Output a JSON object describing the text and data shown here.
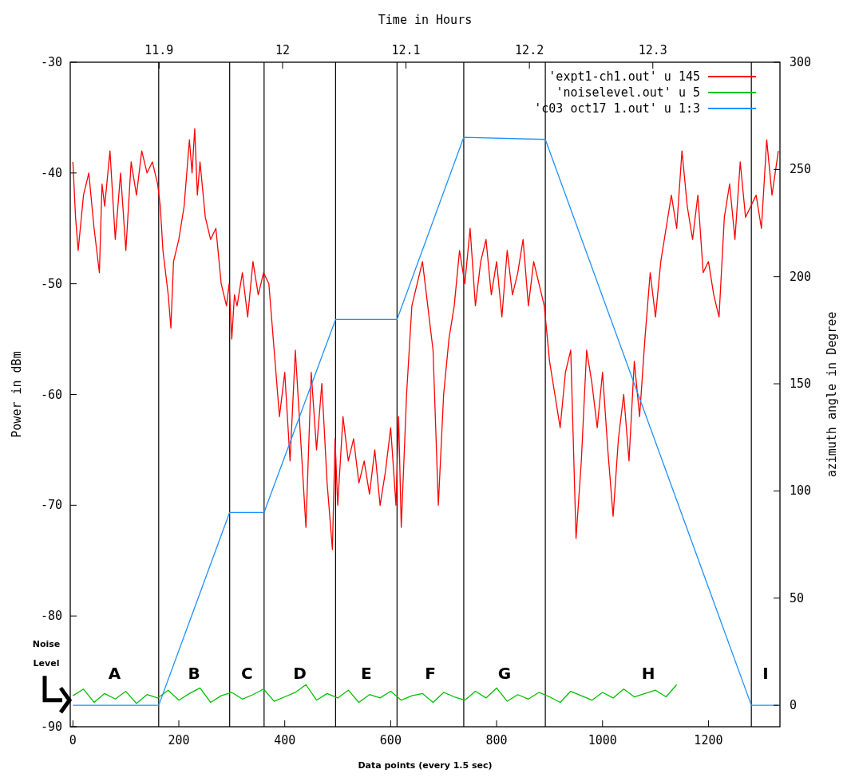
{
  "chart_data": {
    "type": "line",
    "x2label": "Time in Hours",
    "xlabel": "Data points (every 1.5 sec)",
    "ylabel": "Power in dBm",
    "y2label": "azimuth angle in Degree",
    "xlim": [
      -5,
      1335
    ],
    "xticks": [
      0,
      200,
      400,
      600,
      800,
      1000,
      1200
    ],
    "x2lim": [
      11.828,
      12.403
    ],
    "x2ticks": [
      11.9,
      12,
      12.1,
      12.2,
      12.3
    ],
    "ylim": [
      -90,
      -30
    ],
    "yticks": [
      -90,
      -80,
      -70,
      -60,
      -50,
      -40,
      -30
    ],
    "y2lim": [
      -10,
      300
    ],
    "y2ticks": [
      0,
      50,
      100,
      150,
      200,
      250,
      300
    ],
    "grid": false,
    "legend": "top right",
    "line_style": "solid",
    "marker": "none",
    "series": [
      {
        "name": "'expt1-ch1.out' u 145",
        "color": "#ff0000",
        "x": [
          0,
          5,
          10,
          20,
          30,
          40,
          50,
          55,
          60,
          70,
          80,
          90,
          100,
          110,
          120,
          130,
          140,
          150,
          160,
          165,
          170,
          180,
          185,
          190,
          200,
          210,
          215,
          220,
          225,
          230,
          235,
          240,
          250,
          260,
          270,
          280,
          290,
          295,
          300,
          305,
          310,
          320,
          330,
          340,
          350,
          360,
          370,
          380,
          390,
          400,
          410,
          420,
          430,
          440,
          450,
          460,
          470,
          480,
          490,
          495,
          500,
          510,
          520,
          530,
          540,
          550,
          560,
          570,
          580,
          590,
          600,
          610,
          615,
          620,
          630,
          640,
          650,
          660,
          670,
          680,
          690,
          700,
          710,
          720,
          730,
          740,
          750,
          760,
          770,
          780,
          790,
          800,
          810,
          820,
          830,
          840,
          850,
          860,
          870,
          880,
          890,
          900,
          910,
          920,
          930,
          940,
          950,
          960,
          970,
          980,
          990,
          1000,
          1010,
          1020,
          1030,
          1040,
          1050,
          1060,
          1070,
          1080,
          1090,
          1100,
          1110,
          1120,
          1130,
          1140,
          1150,
          1160,
          1170,
          1180,
          1190,
          1200,
          1210,
          1220,
          1230,
          1240,
          1250,
          1260,
          1270,
          1280,
          1290,
          1300,
          1310,
          1320,
          1332
        ],
        "values": [
          -39,
          -44,
          -47,
          -42,
          -40,
          -45,
          -49,
          -41,
          -43,
          -38,
          -46,
          -40,
          -47,
          -39,
          -42,
          -38,
          -40,
          -39,
          -41,
          -43,
          -47,
          -51,
          -54,
          -48,
          -46,
          -43,
          -40,
          -37,
          -40,
          -36,
          -42,
          -39,
          -44,
          -46,
          -45,
          -50,
          -52,
          -50,
          -55,
          -51,
          -52,
          -49,
          -53,
          -48,
          -51,
          -49,
          -50,
          -56,
          -62,
          -58,
          -66,
          -56,
          -64,
          -72,
          -58,
          -65,
          -59,
          -68,
          -74,
          -64,
          -70,
          -62,
          -66,
          -64,
          -68,
          -66,
          -69,
          -65,
          -70,
          -67,
          -63,
          -70,
          -62,
          -72,
          -60,
          -52,
          -50,
          -48,
          -52,
          -56,
          -70,
          -60,
          -55,
          -52,
          -47,
          -50,
          -45,
          -52,
          -48,
          -46,
          -51,
          -48,
          -53,
          -47,
          -51,
          -49,
          -46,
          -52,
          -48,
          -50,
          -52,
          -57,
          -60,
          -63,
          -58,
          -56,
          -73,
          -66,
          -56,
          -59,
          -63,
          -58,
          -65,
          -71,
          -64,
          -60,
          -66,
          -57,
          -62,
          -55,
          -49,
          -53,
          -48,
          -45,
          -42,
          -45,
          -38,
          -43,
          -46,
          -42,
          -49,
          -48,
          -51,
          -53,
          -44,
          -41,
          -46,
          -39,
          -44,
          -43,
          -42,
          -45,
          -37,
          -42,
          -38
        ]
      },
      {
        "name": "'noiselevel.out' u 5",
        "color": "#00c000",
        "x": [
          0,
          20,
          40,
          60,
          80,
          100,
          120,
          140,
          160,
          180,
          200,
          220,
          240,
          260,
          280,
          300,
          320,
          340,
          360,
          380,
          400,
          420,
          440,
          460,
          480,
          500,
          520,
          540,
          560,
          580,
          600,
          620,
          640,
          660,
          680,
          700,
          720,
          740,
          760,
          780,
          800,
          820,
          840,
          860,
          880,
          900,
          920,
          940,
          960,
          980,
          1000,
          1020,
          1040,
          1060,
          1080,
          1100,
          1120,
          1140
        ],
        "values": [
          -87.2,
          -86.6,
          -87.8,
          -87.0,
          -87.5,
          -86.8,
          -87.9,
          -87.1,
          -87.4,
          -86.7,
          -87.6,
          -87.0,
          -86.5,
          -87.8,
          -87.2,
          -86.9,
          -87.5,
          -87.1,
          -86.6,
          -87.7,
          -87.3,
          -86.9,
          -86.2,
          -87.6,
          -87.0,
          -87.4,
          -86.7,
          -87.8,
          -87.1,
          -87.4,
          -86.8,
          -87.6,
          -87.2,
          -87.0,
          -87.8,
          -86.9,
          -87.3,
          -87.6,
          -86.8,
          -87.4,
          -86.5,
          -87.7,
          -87.1,
          -87.5,
          -86.9,
          -87.3,
          -87.8,
          -86.8,
          -87.2,
          -87.6,
          -86.9,
          -87.4,
          -86.6,
          -87.3,
          -87.0,
          -86.7,
          -87.3,
          -86.2
        ]
      },
      {
        "name": "'c03 oct17 1.out' u 1:3",
        "color": "#1e90ff",
        "axis": "y2",
        "x": [
          0,
          162,
          296,
          361,
          496,
          612,
          738,
          892,
          1281,
          1332
        ],
        "values": [
          0,
          0,
          90,
          90,
          180,
          180,
          265,
          264,
          0,
          0
        ]
      }
    ],
    "ref_lines": [
      {
        "axis": "x",
        "value": 162,
        "color": "#000000"
      },
      {
        "axis": "x",
        "value": 296,
        "color": "#000000"
      },
      {
        "axis": "x",
        "value": 361,
        "color": "#000000"
      },
      {
        "axis": "x",
        "value": 496,
        "color": "#000000"
      },
      {
        "axis": "x",
        "value": 612,
        "color": "#000000"
      },
      {
        "axis": "x",
        "value": 738,
        "color": "#000000"
      },
      {
        "axis": "x",
        "value": 892,
        "color": "#000000"
      },
      {
        "axis": "x",
        "value": 1281,
        "color": "#000000"
      }
    ],
    "annotations": [
      "Noise Level",
      "A",
      "B",
      "C",
      "D",
      "E",
      "F",
      "G",
      "H",
      "I"
    ]
  }
}
